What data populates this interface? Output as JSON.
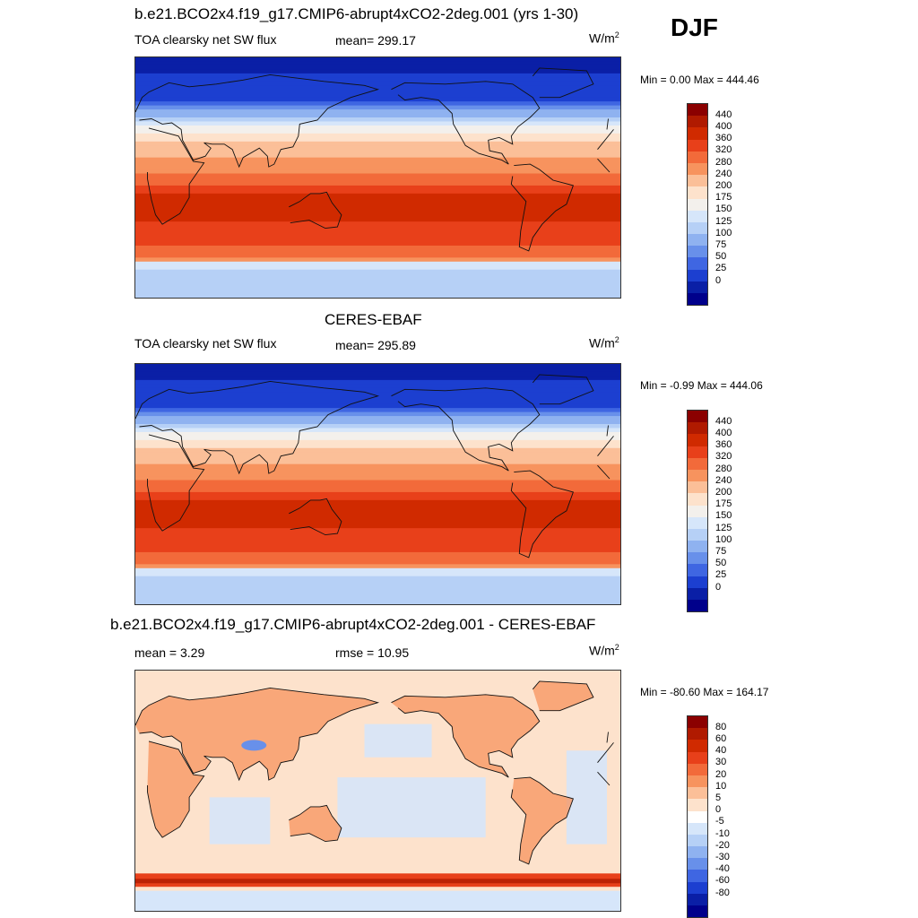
{
  "season": "DJF",
  "panels": [
    {
      "title": "b.e21.BCO2x4.f19_g17.CMIP6-abrupt4xCO2-2deg.001 (yrs 1-30)",
      "left_label": "TOA clearsky net SW flux",
      "center_label": "mean= 299.17",
      "units": "W/m",
      "units_sup": "2",
      "minmax": "Min =   0.00 Max = 444.46",
      "map_type": "absolute"
    },
    {
      "title": "CERES-EBAF",
      "left_label": "TOA clearsky net SW flux",
      "center_label": "mean= 295.89",
      "units": "W/m",
      "units_sup": "2",
      "minmax": "Min =  -0.99 Max = 444.06",
      "map_type": "absolute"
    },
    {
      "title": "b.e21.BCO2x4.f19_g17.CMIP6-abrupt4xCO2-2deg.001 - CERES-EBAF",
      "left_label": "mean =   3.29",
      "center_label": "rmse =  10.95",
      "units": "W/m",
      "units_sup": "2",
      "minmax": "Min = -80.60 Max = 164.17",
      "map_type": "difference"
    }
  ],
  "colorbars": {
    "absolute": {
      "labels": [
        "440",
        "400",
        "360",
        "320",
        "280",
        "240",
        "200",
        "175",
        "150",
        "125",
        "100",
        "75",
        "50",
        "25",
        "0"
      ],
      "colors": [
        "#8b0000",
        "#b01a00",
        "#d02a00",
        "#e8401a",
        "#f26a3a",
        "#f7935e",
        "#fbbf98",
        "#fde2cc",
        "#f3f0ec",
        "#d6e6fa",
        "#b6d0f6",
        "#8fb2f0",
        "#6890ea",
        "#3f66e2",
        "#1c3fd0",
        "#0a1fa6",
        "#00008b"
      ]
    },
    "difference": {
      "labels": [
        "80",
        "60",
        "40",
        "30",
        "20",
        "10",
        "5",
        "0",
        "-5",
        "-10",
        "-20",
        "-30",
        "-40",
        "-60",
        "-80"
      ],
      "colors": [
        "#8b0000",
        "#b01a00",
        "#d02a00",
        "#e8401a",
        "#f26a3a",
        "#f7935e",
        "#fbbf98",
        "#fde2cc",
        "#ffffff",
        "#d6e6fa",
        "#b6d0f6",
        "#8fb2f0",
        "#6890ea",
        "#3f66e2",
        "#1c3fd0",
        "#0a1fa6",
        "#00008b"
      ]
    }
  },
  "chart_data": {
    "type": "heatmap",
    "variable": "TOA clearsky net SW flux",
    "season": "DJF",
    "units": "W/m2",
    "panels": [
      {
        "title": "b.e21.BCO2x4.f19_g17.CMIP6-abrupt4xCO2-2deg.001 (yrs 1-30)",
        "mean": 299.17,
        "min": 0.0,
        "max": 444.46
      },
      {
        "title": "CERES-EBAF",
        "mean": 295.89,
        "min": -0.99,
        "max": 444.06
      },
      {
        "title": "b.e21.BCO2x4.f19_g17.CMIP6-abrupt4xCO2-2deg.001 - CERES-EBAF",
        "mean": 3.29,
        "rmse": 10.95,
        "min": -80.6,
        "max": 164.17
      }
    ],
    "absolute_levels": [
      0,
      25,
      50,
      75,
      100,
      125,
      150,
      175,
      200,
      240,
      280,
      320,
      360,
      400,
      440
    ],
    "difference_levels": [
      -80,
      -60,
      -40,
      -30,
      -20,
      -10,
      -5,
      0,
      5,
      10,
      20,
      30,
      40,
      60,
      80
    ]
  }
}
